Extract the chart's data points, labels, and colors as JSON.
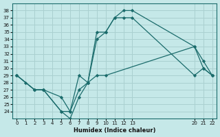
{
  "xlabel": "Humidex (Indice chaleur)",
  "bg_color": "#c5e8e8",
  "grid_color": "#aad0d0",
  "line_color": "#1a6b6b",
  "series": [
    {
      "x": [
        0,
        2,
        3,
        5,
        6,
        7,
        8,
        9,
        10,
        11,
        12,
        13,
        20,
        21,
        22
      ],
      "y": [
        29,
        27,
        27,
        24,
        24,
        29,
        28,
        35,
        35,
        37,
        38,
        38,
        33,
        31,
        29
      ]
    },
    {
      "x": [
        0,
        2,
        3,
        5,
        6,
        7,
        8,
        9,
        10,
        11,
        12,
        13,
        20,
        21,
        22
      ],
      "y": [
        29,
        27,
        27,
        24,
        23,
        26,
        28,
        34,
        35,
        37,
        37,
        37,
        29,
        30,
        29
      ]
    },
    {
      "x": [
        0,
        1,
        2,
        3,
        5,
        6,
        7,
        8,
        9,
        10,
        20,
        21,
        22
      ],
      "y": [
        29,
        28,
        27,
        27,
        26,
        24,
        27,
        28,
        29,
        29,
        33,
        30,
        29
      ]
    }
  ],
  "xlim": [
    -0.5,
    22.5
  ],
  "ylim": [
    23.0,
    39.0
  ],
  "xticks": [
    0,
    1,
    2,
    3,
    4,
    5,
    6,
    7,
    8,
    9,
    10,
    11,
    12,
    13,
    20,
    21,
    22
  ],
  "yticks": [
    24,
    25,
    26,
    27,
    28,
    29,
    30,
    31,
    32,
    33,
    34,
    35,
    36,
    37,
    38
  ]
}
